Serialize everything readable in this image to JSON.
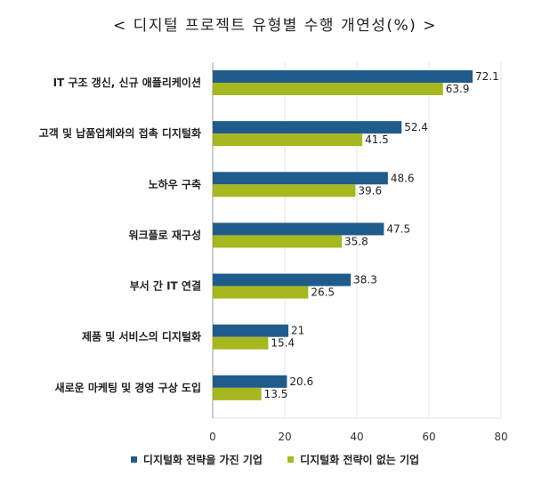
{
  "title": "< 디지털 프로젝트 유형별 수행 개연성(%) >",
  "colors": {
    "series1": "#1f5c8b",
    "series2": "#a7b71f",
    "grid": "#e6e6e6",
    "axis": "#999999"
  },
  "chart_data": {
    "type": "bar",
    "orientation": "horizontal",
    "categories": [
      "IT 구조 갱신, 신규 애플리케이션",
      "고객 및 납품업체와의 접촉 디지털화",
      "노하우 구축",
      "워크플로 재구성",
      "부서 간 IT 연결",
      "제품 및 서비스의 디지털화",
      "새로운 마케팅 및 경영 구상 도입"
    ],
    "series": [
      {
        "name": "디지털화 전략을 가진 기업",
        "values": [
          72.1,
          52.4,
          48.6,
          47.5,
          38.3,
          21,
          20.6
        ],
        "labels": [
          "72.1",
          "52.4",
          "48.6",
          "47.5",
          "38.3",
          "21",
          "20.6"
        ]
      },
      {
        "name": "디지털화 전략이 없는 기업",
        "values": [
          63.9,
          41.5,
          39.6,
          35.8,
          26.5,
          15.4,
          13.5
        ],
        "labels": [
          "63.9",
          "41.5",
          "39.6",
          "35.8",
          "26.5",
          "15.4",
          "13.5"
        ]
      }
    ],
    "xlim": [
      0,
      80
    ],
    "xticks": [
      "0",
      "20",
      "40",
      "60",
      "80"
    ],
    "grid": true,
    "legend_position": "bottom"
  }
}
